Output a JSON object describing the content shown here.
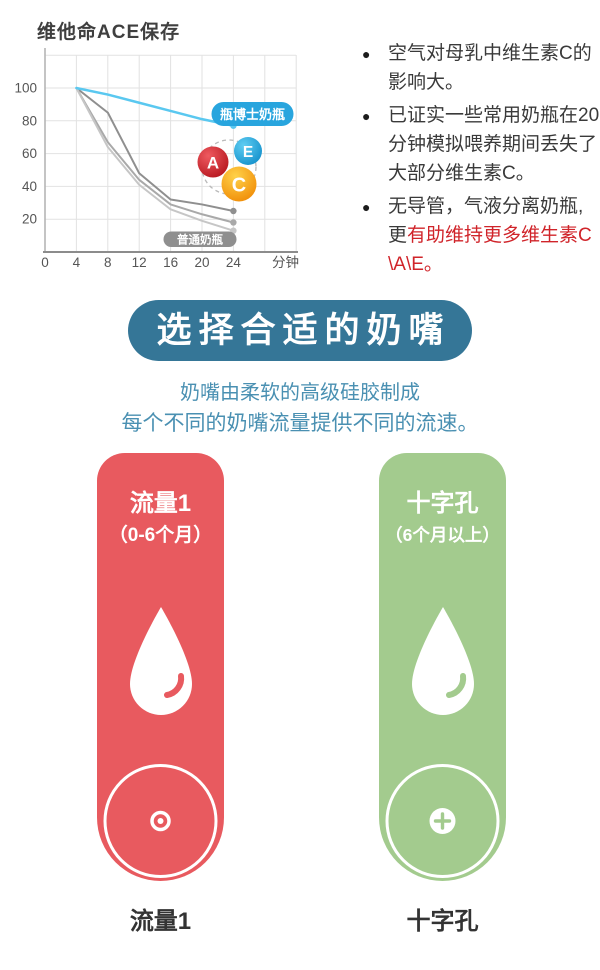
{
  "chart_data": {
    "type": "line",
    "title": "维他命ACE保存",
    "x_unit_label": "分钟",
    "x": [
      4,
      8,
      12,
      16,
      20,
      24
    ],
    "x_ticks": [
      0,
      4,
      8,
      12,
      16,
      20,
      24
    ],
    "y_ticks": [
      100,
      80,
      60,
      40,
      20
    ],
    "xlim": [
      0,
      28
    ],
    "ylim": [
      0,
      120
    ],
    "grid": true,
    "series": [
      {
        "name": "普通奶瓶-1",
        "color": "#8f8f8f",
        "width": 2,
        "end_dot": true,
        "values": [
          100,
          85,
          48,
          32,
          29,
          25
        ]
      },
      {
        "name": "普通奶瓶-2",
        "color": "#a9a9a9",
        "width": 2,
        "end_dot": true,
        "values": [
          100,
          67,
          44,
          29,
          23,
          18
        ]
      },
      {
        "name": "普通奶瓶-3",
        "color": "#c6c6c6",
        "width": 2,
        "end_dot": true,
        "values": [
          100,
          64,
          41,
          26,
          19,
          13
        ]
      },
      {
        "name": "瓶博士奶瓶",
        "color": "#5ac8f0",
        "width": 2.5,
        "end_dot": true,
        "values": [
          100,
          96,
          91,
          86,
          81,
          77
        ]
      }
    ],
    "label_doctor": "瓶博士奶瓶",
    "label_ordinary": "普通奶瓶",
    "badges": [
      {
        "letter": "A",
        "color": "#c8242c"
      },
      {
        "letter": "E",
        "color": "#2aa9dd"
      },
      {
        "letter": "C",
        "color": "#f5a50c"
      }
    ]
  },
  "bullets": {
    "items": [
      {
        "lines": [
          "空气对母乳中维生素C的",
          "影响大。"
        ]
      },
      {
        "lines": [
          "已证实一些常用奶瓶在20",
          "分钟模拟喂养期间丢失了",
          "大部分维生素C。"
        ]
      },
      {
        "line1": "无导管，气液分离奶瓶,",
        "line2_dark": "更",
        "line2_red": "有助维持更多维生素C",
        "line3_red": "\\A\\E。"
      }
    ]
  },
  "nipple_section": {
    "banner": "选择合适的奶嘴",
    "subtitle1": "奶嘴由柔软的高级硅胶制成",
    "subtitle2": "每个不同的奶嘴流量提供不同的流速。",
    "cards": [
      {
        "title": "流量1",
        "subtitle": "（0-6个月）",
        "hole_type": "dot",
        "bottom_label": "流量1",
        "color": "#e85a5f"
      },
      {
        "title": "十字孔",
        "subtitle": "（6个月以上）",
        "hole_type": "cross",
        "bottom_label": "十字孔",
        "color": "#a3cb8e"
      }
    ]
  },
  "colors": {
    "banner_teal": "#357697",
    "subtitle_blue": "#4a90b2",
    "red_text": "#d0242a",
    "card_red": "#e85a5f",
    "card_green": "#a3cb8e",
    "line_blue": "#5ac8f0",
    "doctor_pill_blue": "#28a5de",
    "ordinary_pill_gray": "#8f8f8f",
    "text_dark": "#3a3a3a"
  }
}
